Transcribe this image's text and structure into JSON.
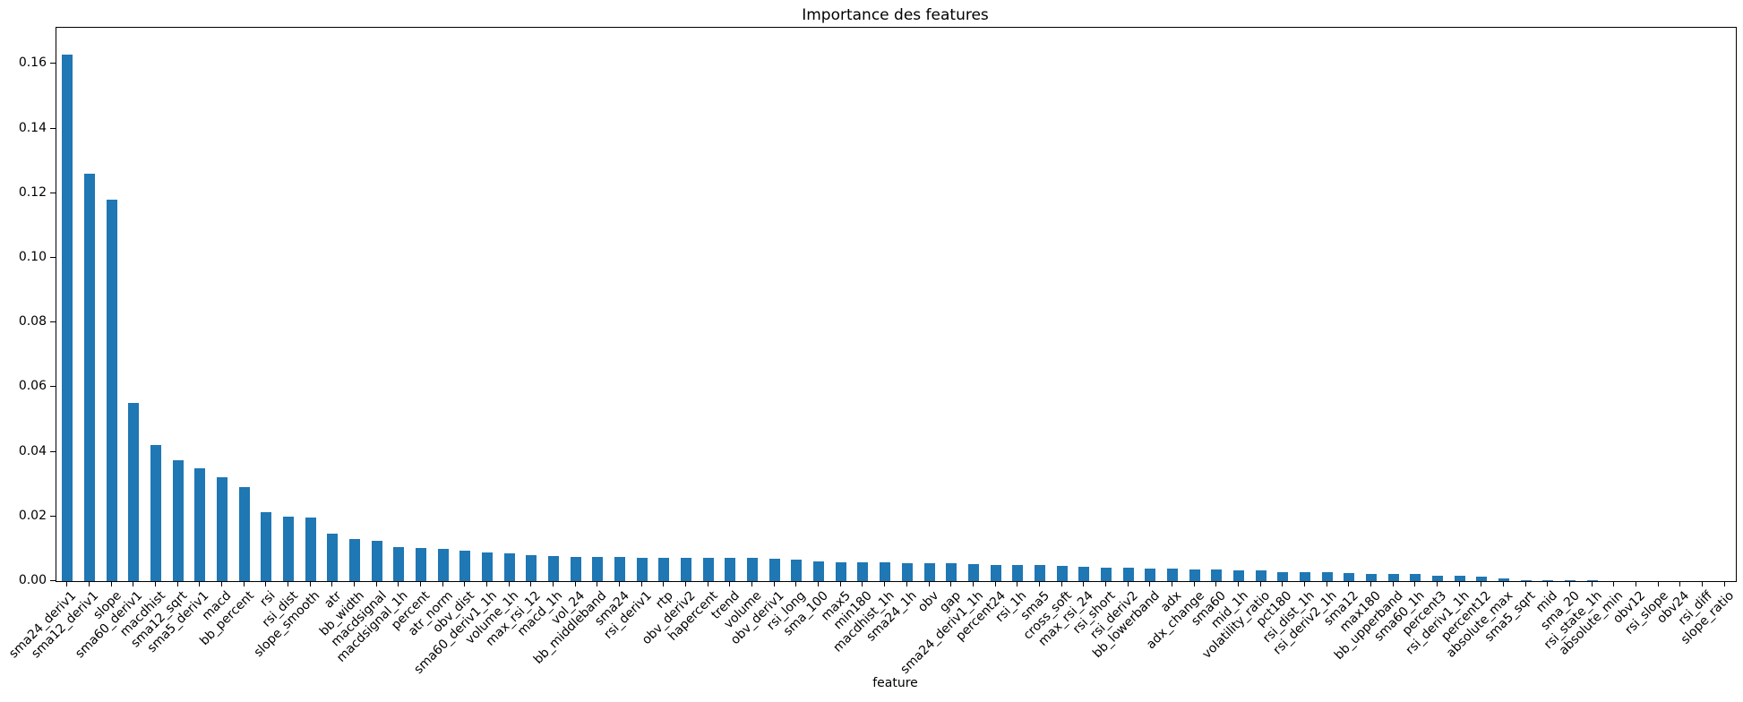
{
  "figure": {
    "background_color": "#ffffff",
    "plot_background_color": "#ffffff",
    "spine_color": "#000000",
    "text_color": "#000000"
  },
  "chart_data": {
    "type": "bar",
    "title": "Importance des features",
    "xlabel": "feature",
    "ylabel": "",
    "legend_position": "none",
    "grid": false,
    "bar_color": "#1f77b4",
    "x_tick_rotation_deg": 45,
    "ylim": [
      0,
      0.1712
    ],
    "y_tick_labels": [
      "0.00",
      "0.02",
      "0.04",
      "0.06",
      "0.08",
      "0.10",
      "0.12",
      "0.14",
      "0.16"
    ],
    "y_tick_values": [
      0.0,
      0.02,
      0.04,
      0.06,
      0.08,
      0.1,
      0.12,
      0.14,
      0.16
    ],
    "categories": [
      "sma24_deriv1",
      "sma12_deriv1",
      "slope",
      "sma60_deriv1",
      "macdhist",
      "sma12_sqrt",
      "sma5_deriv1",
      "macd",
      "bb_percent",
      "rsi",
      "rsi_dist",
      "slope_smooth",
      "atr",
      "bb_width",
      "macdsignal",
      "macdsignal_1h",
      "percent",
      "atr_norm",
      "obv_dist",
      "sma60_deriv1_1h",
      "volume_1h",
      "max_rsi_12",
      "macd_1h",
      "vol_24",
      "bb_middleband",
      "sma24",
      "rsi_deriv1",
      "rtp",
      "obv_deriv2",
      "hapercent",
      "trend",
      "volume",
      "obv_deriv1",
      "rsi_long",
      "sma_100",
      "max5",
      "min180",
      "macdhist_1h",
      "sma24_1h",
      "obv",
      "gap",
      "sma24_deriv1_1h",
      "percent24",
      "rsi_1h",
      "sma5",
      "cross_soft",
      "max_rsi_24",
      "rsi_short",
      "rsi_deriv2",
      "bb_lowerband",
      "adx",
      "adx_change",
      "sma60",
      "mid_1h",
      "volatility_ratio",
      "pct180",
      "rsi_dist_1h",
      "rsi_deriv2_1h",
      "sma12",
      "max180",
      "bb_upperband",
      "sma60_1h",
      "percent3",
      "rsi_deriv1_1h",
      "percent12",
      "absolute_max",
      "sma5_sqrt",
      "mid",
      "sma_20",
      "rsi_state_1h",
      "absolute_min",
      "obv12",
      "rsi_slope",
      "obv24",
      "rsi_diff",
      "slope_ratio"
    ],
    "values": [
      0.163,
      0.126,
      0.118,
      0.055,
      0.042,
      0.0375,
      0.035,
      0.032,
      0.029,
      0.0213,
      0.02,
      0.0198,
      0.0146,
      0.0131,
      0.0124,
      0.0105,
      0.0102,
      0.01,
      0.0093,
      0.0088,
      0.0085,
      0.008,
      0.0078,
      0.0076,
      0.0075,
      0.0074,
      0.0073,
      0.0073,
      0.0072,
      0.0072,
      0.0072,
      0.0071,
      0.0069,
      0.0067,
      0.0062,
      0.0059,
      0.0058,
      0.0057,
      0.0056,
      0.0055,
      0.0055,
      0.0054,
      0.0051,
      0.005,
      0.0049,
      0.0046,
      0.0045,
      0.0042,
      0.0041,
      0.004,
      0.0038,
      0.0037,
      0.0036,
      0.0034,
      0.0033,
      0.0029,
      0.0028,
      0.0027,
      0.0026,
      0.0023,
      0.0022,
      0.0021,
      0.0018,
      0.0017,
      0.0015,
      0.0008,
      0.0004,
      0.0003,
      0.0002,
      0.0002,
      0.0001,
      0.0001,
      0.0001,
      0.0001,
      0.0,
      0.0
    ]
  }
}
